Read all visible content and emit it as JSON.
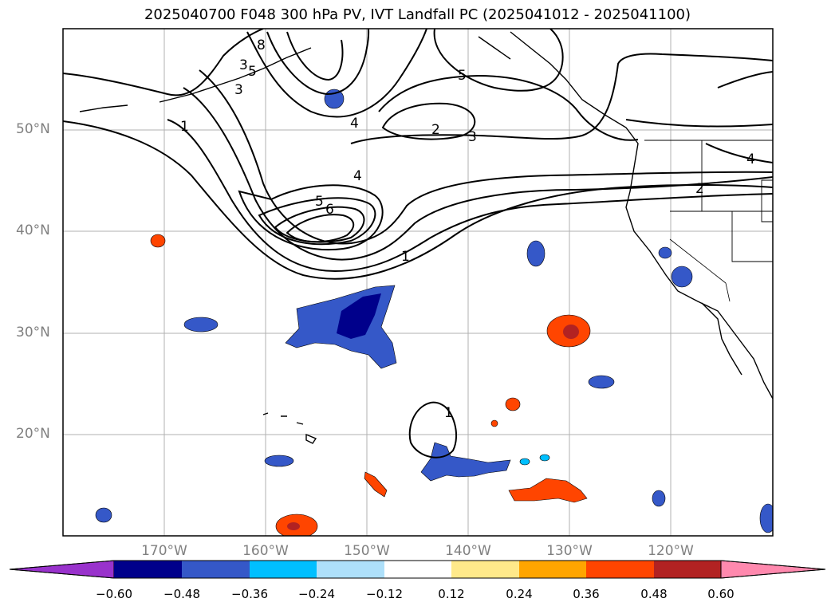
{
  "title": "2025040700 F048 300 hPa PV, IVT Landfall PC (2025041012 - 2025041100)",
  "map": {
    "lon_range": [
      -180,
      -110
    ],
    "lat_range": [
      10,
      60
    ],
    "lat_labels": [
      "50°N",
      "40°N",
      "30°N",
      "20°N"
    ],
    "lon_labels": [
      "170°W",
      "160°W",
      "150°W",
      "140°W",
      "130°W",
      "120°W"
    ],
    "contour_labels": [
      "1",
      "1",
      "1",
      "2",
      "2",
      "3",
      "3",
      "3",
      "4",
      "4",
      "4",
      "5",
      "5",
      "5",
      "6",
      "8"
    ]
  },
  "colorbar": {
    "ticks": [
      "−0.60",
      "−0.48",
      "−0.36",
      "−0.24",
      "−0.12",
      "0.12",
      "0.24",
      "0.36",
      "0.48",
      "0.60"
    ],
    "colors": [
      "#9932cc",
      "#00008b",
      "#3558c8",
      "#00bfff",
      "#aee0fa",
      "#ffffff",
      "#ffe98a",
      "#ffa500",
      "#ff4500",
      "#b22222",
      "#ff89ae"
    ]
  },
  "colors": {
    "frame": "#000000",
    "grid": "#b0b0b0",
    "axis_label": "#808080"
  }
}
